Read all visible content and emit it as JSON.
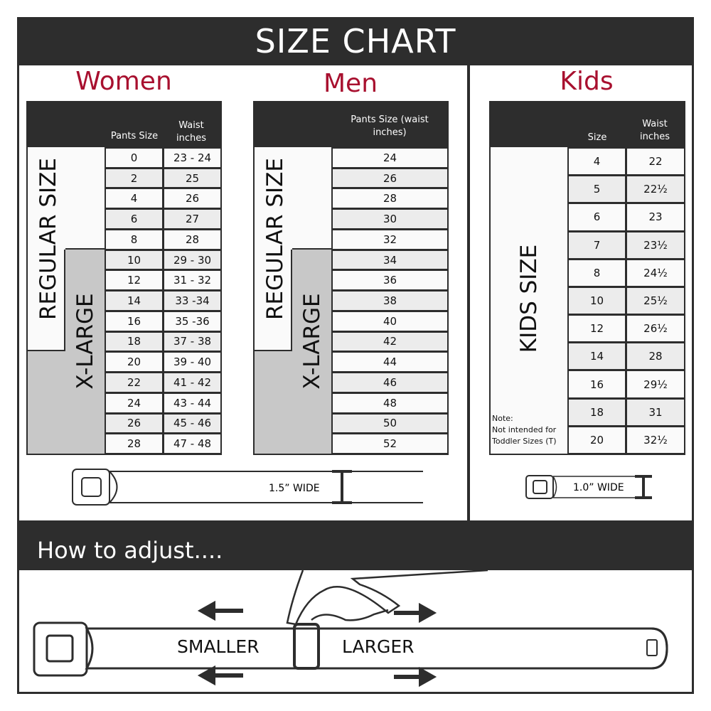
{
  "title": "SIZE CHART",
  "colors": {
    "accent": "#a8102f",
    "dark": "#2d2d2d",
    "xlarge": "#c8c8c8"
  },
  "women": {
    "title": "Women",
    "col1": "Pants Size",
    "col2": "Waist inches",
    "regular_label": "REGULAR SIZE",
    "xlarge_label": "X-LARGE",
    "rows": [
      [
        "0",
        "23 - 24"
      ],
      [
        "2",
        "25"
      ],
      [
        "4",
        "26"
      ],
      [
        "6",
        "27"
      ],
      [
        "8",
        "28"
      ],
      [
        "10",
        "29 - 30"
      ],
      [
        "12",
        "31 - 32"
      ],
      [
        "14",
        "33 -34"
      ],
      [
        "16",
        "35 -36"
      ],
      [
        "18",
        "37 - 38"
      ],
      [
        "20",
        "39 - 40"
      ],
      [
        "22",
        "41 - 42"
      ],
      [
        "24",
        "43 - 44"
      ],
      [
        "26",
        "45 - 46"
      ],
      [
        "28",
        "47 - 48"
      ]
    ],
    "belt_label": "1.5” WIDE"
  },
  "men": {
    "title": "Men",
    "col1": "Pants Size (waist inches)",
    "regular_label": "REGULAR SIZE",
    "xlarge_label": "X-LARGE",
    "rows": [
      "24",
      "26",
      "28",
      "30",
      "32",
      "34",
      "36",
      "38",
      "40",
      "42",
      "44",
      "46",
      "48",
      "50",
      "52"
    ]
  },
  "kids": {
    "title": "Kids",
    "col1": "Size",
    "col2": "Waist inches",
    "label": "KIDS SIZE",
    "note_title": "Note:",
    "note": "Not intended for Toddler Sizes (T)",
    "rows": [
      [
        "4",
        "22"
      ],
      [
        "5",
        "22½"
      ],
      [
        "6",
        "23"
      ],
      [
        "7",
        "23½"
      ],
      [
        "8",
        "24½"
      ],
      [
        "10",
        "25½"
      ],
      [
        "12",
        "26½"
      ],
      [
        "14",
        "28"
      ],
      [
        "16",
        "29½"
      ],
      [
        "18",
        "31"
      ],
      [
        "20",
        "32½"
      ]
    ],
    "belt_label": "1.0” WIDE"
  },
  "adjust": {
    "title": "How to adjust....",
    "smaller": "SMALLER",
    "larger": "LARGER"
  }
}
